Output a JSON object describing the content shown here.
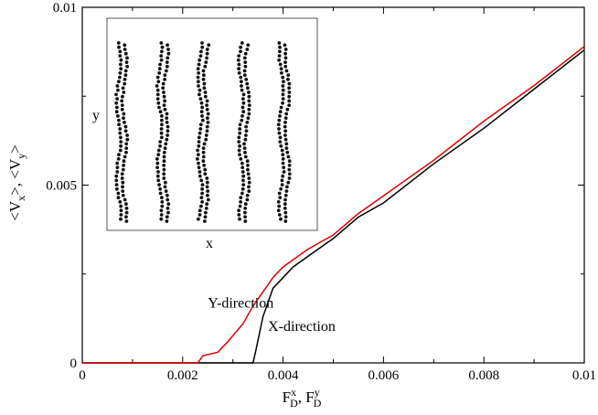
{
  "chart_data": {
    "type": "line",
    "xlabel": {
      "main": "F",
      "sup1": "x",
      "sub1": "D",
      "sep": ", ",
      "main2": "F",
      "sup2": "y",
      "sub2": "D"
    },
    "ylabel": {
      "part1": "<V",
      "sub1": "x",
      "part2": ">, <V",
      "sub2": "y",
      "part3": ">"
    },
    "xlim": [
      0,
      0.01
    ],
    "ylim": [
      0,
      0.01
    ],
    "xticks": [
      0,
      0.002,
      0.004,
      0.006,
      0.008,
      0.01
    ],
    "xtick_labels": [
      "0",
      "0.002",
      "0.004",
      "0.006",
      "0.008",
      "0.01"
    ],
    "yticks": [
      0,
      0.005,
      0.01
    ],
    "ytick_labels": [
      "0",
      "0.005",
      "0.01"
    ],
    "legend": "none",
    "grid": false,
    "series": [
      {
        "label": "X-direction",
        "color": "#000000",
        "x": [
          0,
          0.0034,
          0.00345,
          0.0036,
          0.0038,
          0.0042,
          0.0046,
          0.005,
          0.0055,
          0.006,
          0.007,
          0.008,
          0.009,
          0.01
        ],
        "y": [
          0,
          0,
          0.0003,
          0.0013,
          0.0021,
          0.0027,
          0.0031,
          0.0035,
          0.0041,
          0.0045,
          0.0056,
          0.0066,
          0.0077,
          0.0088
        ]
      },
      {
        "label": "Y-direction",
        "color": "#dd0000",
        "x": [
          0,
          0.0023,
          0.0024,
          0.0027,
          0.0029,
          0.0032,
          0.0034,
          0.0036,
          0.0038,
          0.004,
          0.0045,
          0.005,
          0.0055,
          0.006,
          0.007,
          0.008,
          0.009,
          0.01
        ],
        "y": [
          0,
          0,
          0.0002,
          0.0003,
          0.0006,
          0.0011,
          0.0016,
          0.002,
          0.0024,
          0.0027,
          0.0032,
          0.0036,
          0.0042,
          0.0047,
          0.0057,
          0.0068,
          0.0078,
          0.0089
        ]
      }
    ],
    "annotations": [
      {
        "text": "Y-direction",
        "at": [
          0.0025,
          0.00155
        ]
      },
      {
        "text": "X-direction",
        "at": [
          0.0037,
          0.0009
        ]
      }
    ],
    "inset": {
      "xlabel": "x",
      "ylabel": "y",
      "description_columns": 5
    }
  }
}
